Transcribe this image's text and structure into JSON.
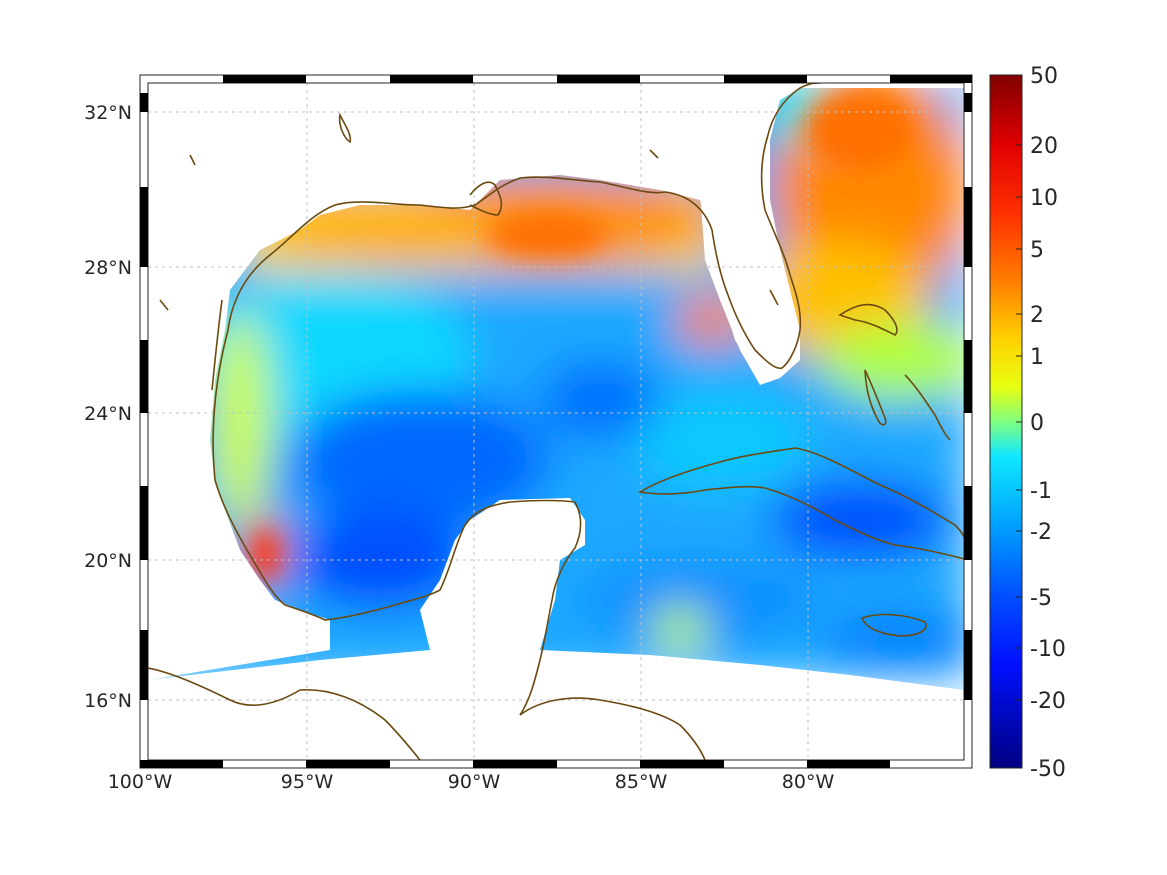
{
  "map": {
    "lon_ticks": [
      "100°W",
      "95°W",
      "90°W",
      "85°W",
      "80°W"
    ],
    "lat_ticks": [
      "32°N",
      "28°N",
      "24°N",
      "20°N",
      "16°N"
    ],
    "lon_range": [
      -100,
      -75
    ],
    "lat_range": [
      14.5,
      33
    ],
    "grid": true,
    "coastline_color": "#6b4a10",
    "region": "Gulf of Mexico and Caribbean"
  },
  "colorbar": {
    "tick_labels": [
      "50",
      "20",
      "10",
      "5",
      "2",
      "1",
      "0",
      "-1",
      "-2",
      "-5",
      "-10",
      "-20",
      "-50"
    ],
    "colormap": "jet",
    "min_label": "-50",
    "max_label": "50"
  },
  "colors": {
    "deep_red": "#800000",
    "red": "#ff2000",
    "orange": "#ff8c00",
    "yellow": "#ffff00",
    "green": "#80ff80",
    "cyan": "#00ffff",
    "blue": "#0060ff",
    "dark_blue": "#000090"
  }
}
